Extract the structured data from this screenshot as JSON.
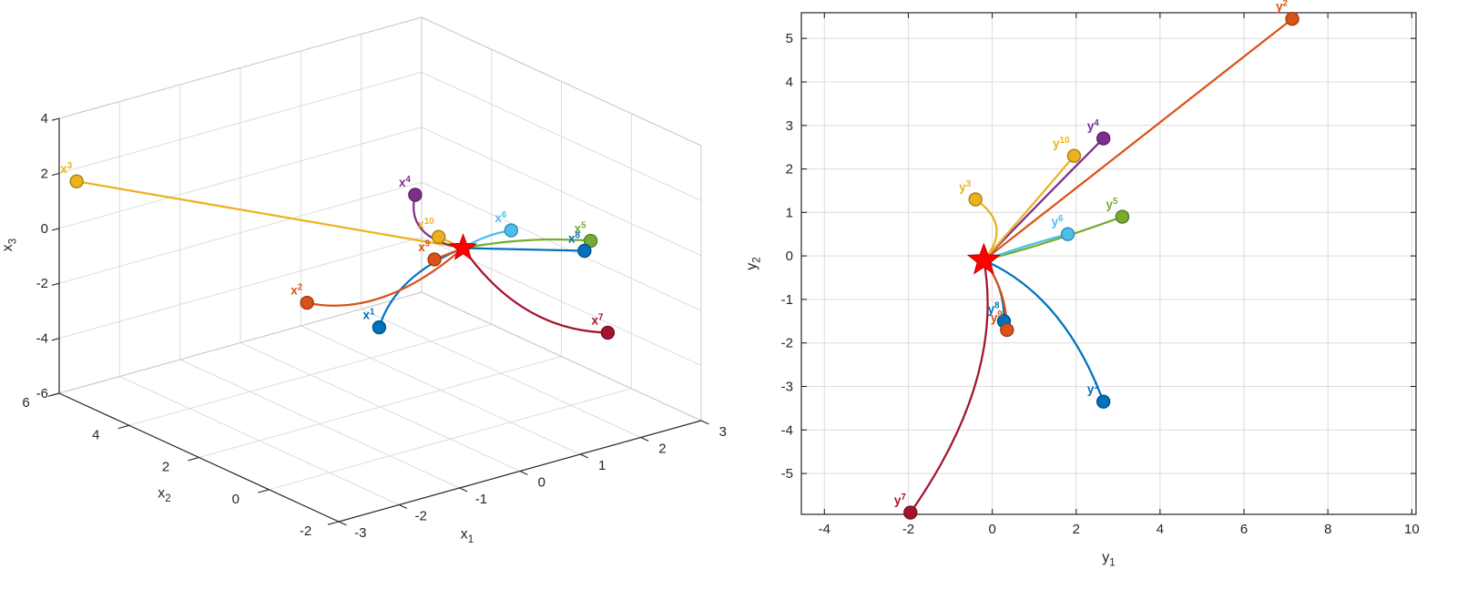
{
  "figure": {
    "background": "#ffffff",
    "grid_color": "#dcdcdc",
    "axis_color": "#262626",
    "tick_label_color": "#262626"
  },
  "chart_data": [
    {
      "id": "state-space-3d",
      "type": "line",
      "subtype": "3d-trajectories-to-equilibrium",
      "title": "",
      "xlabel": "x_1",
      "ylabel": "x_2",
      "zlabel": "x_3",
      "xlim": [
        -3,
        3
      ],
      "ylim": [
        -2,
        6
      ],
      "zlim": [
        -6,
        4
      ],
      "xticks": [
        -3,
        -2,
        -1,
        0,
        1,
        2,
        3
      ],
      "yticks": [
        -2,
        0,
        2,
        4,
        6
      ],
      "zticks": [
        -6,
        -4,
        -2,
        0,
        2,
        4
      ],
      "grid": true,
      "legend": "none",
      "star": {
        "marker": "pentagram",
        "color": "#FF0000",
        "edge": "#C00000",
        "pos": [
          0.1,
          -0.2,
          1.0
        ]
      },
      "series": [
        {
          "name": "x^1",
          "color": "#0072BD",
          "start": [
            -1.0,
            0.3,
            -1.5
          ],
          "ctrl": [
            -0.8,
            0.2,
            0.3
          ]
        },
        {
          "name": "x^2",
          "color": "#D95319",
          "start": [
            -1.5,
            1.5,
            -1.0
          ],
          "ctrl": [
            -0.9,
            0.4,
            -1.3
          ]
        },
        {
          "name": "x^3",
          "color": "#EDB120",
          "start": [
            -3.0,
            5.5,
            2.0
          ],
          "ctrl": [
            -1.45,
            2.65,
            1.5
          ]
        },
        {
          "name": "x^4",
          "color": "#7E2F8E",
          "start": [
            0.0,
            1.0,
            2.3
          ],
          "ctrl": [
            -0.4,
            0.6,
            1.2
          ]
        },
        {
          "name": "x^5",
          "color": "#77AC30",
          "start": [
            2.5,
            0.3,
            -0.5
          ],
          "ctrl": [
            1.5,
            0.3,
            0.3
          ]
        },
        {
          "name": "x^6",
          "color": "#4DBEEE",
          "start": [
            1.3,
            0.5,
            0.5
          ],
          "ctrl": [
            0.7,
            0.2,
            0.9
          ]
        },
        {
          "name": "x^7",
          "color": "#A2142F",
          "start": [
            2.9,
            0.5,
            -4.2
          ],
          "ctrl": [
            1.0,
            -0.3,
            -2.5
          ]
        },
        {
          "name": "x^8",
          "color": "#0072BD",
          "start": [
            2.4,
            0.3,
            -0.8
          ],
          "ctrl": [
            1.25,
            0.05,
            0.1
          ]
        },
        {
          "name": "x^9",
          "color": "#D95319",
          "start": [
            -0.2,
            0.1,
            0.6
          ],
          "ctrl": [
            -0.05,
            -0.05,
            0.8
          ]
        },
        {
          "name": "x^10",
          "color": "#EDB120",
          "start": [
            0.1,
            0.5,
            1.0
          ],
          "ctrl": [
            0.1,
            0.15,
            1.0
          ]
        }
      ]
    },
    {
      "id": "output-space-2d",
      "type": "line",
      "subtype": "2d-trajectories-to-equilibrium",
      "title": "",
      "xlabel": "y_1",
      "ylabel": "y_2",
      "xlim": [
        -4.55,
        10.1
      ],
      "ylim": [
        -5.94,
        5.59
      ],
      "xticks": [
        -4,
        -2,
        0,
        2,
        4,
        6,
        8,
        10
      ],
      "yticks": [
        -5,
        -4,
        -3,
        -2,
        -1,
        0,
        1,
        2,
        3,
        4,
        5
      ],
      "grid": true,
      "legend": "none",
      "star": {
        "marker": "pentagram",
        "color": "#FF0000",
        "edge": "#C00000",
        "pos": [
          -0.2,
          -0.1
        ]
      },
      "series": [
        {
          "name": "y^1",
          "color": "#0072BD",
          "start": [
            2.65,
            -3.35
          ],
          "ctrl": [
            1.7,
            -0.9
          ]
        },
        {
          "name": "y^2",
          "color": "#D95319",
          "start": [
            7.15,
            5.45
          ],
          "ctrl": [
            3.5,
            2.7
          ]
        },
        {
          "name": "y^3",
          "color": "#EDB120",
          "start": [
            -0.4,
            1.3
          ],
          "ctrl": [
            0.5,
            0.7
          ]
        },
        {
          "name": "y^4",
          "color": "#7E2F8E",
          "start": [
            2.65,
            2.7
          ],
          "ctrl": [
            1.2,
            1.3
          ]
        },
        {
          "name": "y^5",
          "color": "#77AC30",
          "start": [
            3.1,
            0.9
          ],
          "ctrl": [
            1.4,
            0.3
          ]
        },
        {
          "name": "y^6",
          "color": "#4DBEEE",
          "start": [
            1.8,
            0.5
          ],
          "ctrl": [
            0.8,
            0.25
          ]
        },
        {
          "name": "y^7",
          "color": "#A2142F",
          "start": [
            -1.95,
            -5.9
          ],
          "ctrl": [
            0.3,
            -2.8
          ]
        },
        {
          "name": "y^8",
          "color": "#0072BD",
          "start": [
            0.28,
            -1.5
          ],
          "ctrl": [
            0.3,
            -0.7
          ]
        },
        {
          "name": "y^9",
          "color": "#D95319",
          "start": [
            0.35,
            -1.7
          ],
          "ctrl": [
            0.35,
            -0.8
          ]
        },
        {
          "name": "y^10",
          "color": "#EDB120",
          "start": [
            1.95,
            2.3
          ],
          "ctrl": [
            0.9,
            1.1
          ]
        }
      ]
    }
  ]
}
